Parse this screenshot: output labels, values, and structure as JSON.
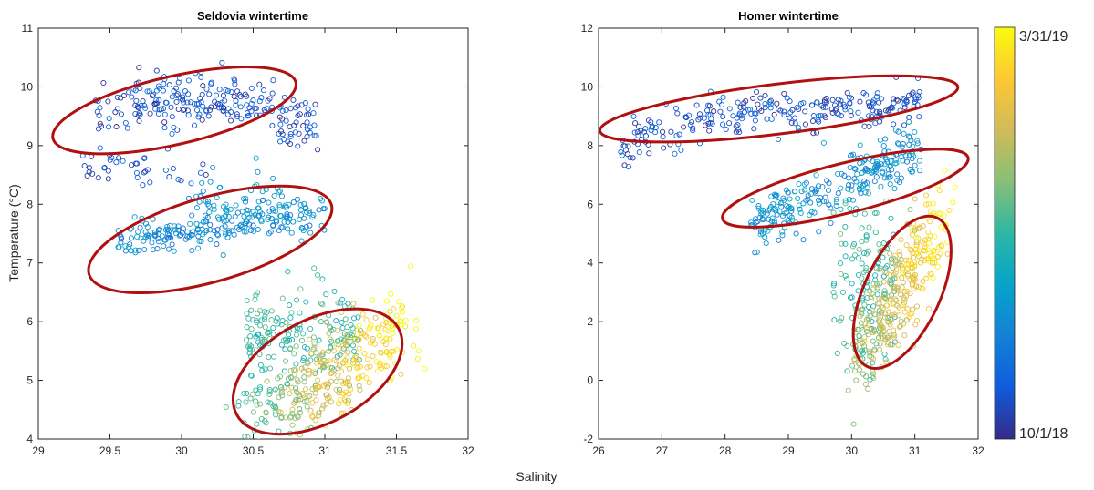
{
  "chart_data": [
    {
      "type": "scatter",
      "title": "Seldovia wintertime",
      "xlabel": "Salinity",
      "ylabel": "Temperature (°C)",
      "xlim": [
        29,
        32
      ],
      "ylim": [
        4,
        11
      ],
      "xticks": [
        "29",
        "29.5",
        "30",
        "30.5",
        "31",
        "31.5",
        "32"
      ],
      "yticks": [
        "4",
        "5",
        "6",
        "7",
        "8",
        "9",
        "10",
        "11"
      ],
      "clusters": [
        {
          "period": "early",
          "salinity_range": [
            29.4,
            30.95
          ],
          "temperature_range": [
            8.6,
            10.1
          ]
        },
        {
          "period": "mid",
          "salinity_range": [
            29.55,
            31.0
          ],
          "temperature_range": [
            7.1,
            8.0
          ]
        },
        {
          "period": "late",
          "salinity_range": [
            30.4,
            31.55
          ],
          "temperature_range": [
            4.2,
            6.4
          ]
        }
      ],
      "annotations": [
        {
          "shape": "ellipse",
          "center": [
            29.95,
            9.6
          ],
          "semi_axes": [
            0.87,
            0.58
          ],
          "angle_deg": -13
        },
        {
          "shape": "ellipse",
          "center": [
            30.2,
            7.4
          ],
          "semi_axes": [
            0.88,
            0.72
          ],
          "angle_deg": -16
        },
        {
          "shape": "ellipse",
          "center": [
            30.95,
            5.15
          ],
          "semi_axes": [
            0.64,
            0.88
          ],
          "angle_deg": -28
        }
      ],
      "grid": false
    },
    {
      "type": "scatter",
      "title": "Homer wintertime",
      "xlabel": "Salinity",
      "ylabel": "",
      "xlim": [
        26,
        32
      ],
      "ylim": [
        -2,
        12
      ],
      "xticks": [
        "26",
        "27",
        "28",
        "29",
        "30",
        "31",
        "32"
      ],
      "yticks": [
        "-2",
        "0",
        "2",
        "4",
        "6",
        "8",
        "10",
        "12"
      ],
      "clusters": [
        {
          "period": "early",
          "salinity_range": [
            26.3,
            31.1
          ],
          "temperature_range": [
            7.5,
            10.5
          ]
        },
        {
          "period": "mid",
          "salinity_range": [
            28.4,
            31.1
          ],
          "temperature_range": [
            5.2,
            8.0
          ]
        },
        {
          "period": "late",
          "salinity_range": [
            29.6,
            31.6
          ],
          "temperature_range": [
            -0.7,
            6.0
          ]
        }
      ],
      "annotations": [
        {
          "shape": "ellipse",
          "center": [
            28.85,
            9.25
          ],
          "semi_axes": [
            2.85,
            0.85
          ],
          "angle_deg": -7
        },
        {
          "shape": "ellipse",
          "center": [
            29.9,
            6.55
          ],
          "semi_axes": [
            2.0,
            0.85
          ],
          "angle_deg": -14
        },
        {
          "shape": "ellipse",
          "center": [
            30.8,
            3.0
          ],
          "semi_axes": [
            0.6,
            2.8
          ],
          "angle_deg": 25
        }
      ],
      "grid": false
    }
  ],
  "colorbar": {
    "top_label": "3/31/19",
    "bottom_label": "10/1/18",
    "colormap": "parula",
    "colors": [
      "#352a87",
      "#0f5cdd",
      "#1481d6",
      "#06a4ca",
      "#2eb7a4",
      "#87bf77",
      "#d1bb59",
      "#fec832",
      "#f9fb0e"
    ]
  },
  "colors": {
    "ellipse": "#b01010"
  }
}
